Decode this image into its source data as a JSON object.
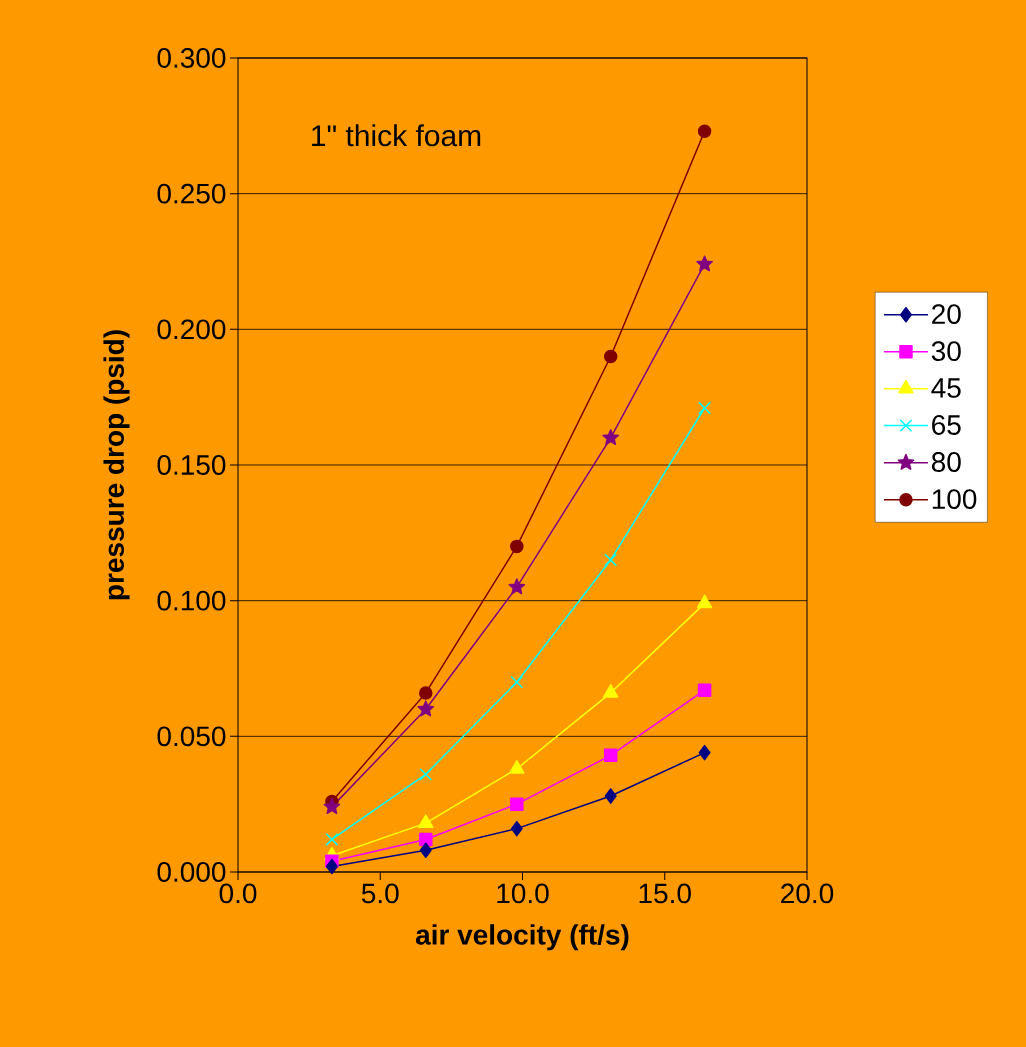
{
  "chart_data": {
    "type": "line",
    "xlabel": "air velocity (ft/s)",
    "ylabel": "pressure drop (psid)",
    "annotations": [
      "1\" thick foam"
    ],
    "x": [
      3.3,
      6.6,
      9.8,
      13.1,
      16.4
    ],
    "xlim": [
      0,
      20
    ],
    "ylim": [
      0,
      0.3
    ],
    "xticks": [
      {
        "value": 0,
        "label": "0.0"
      },
      {
        "value": 5,
        "label": "5.0"
      },
      {
        "value": 10,
        "label": "10.0"
      },
      {
        "value": 15,
        "label": "15.0"
      },
      {
        "value": 20,
        "label": "20.0"
      }
    ],
    "yticks": [
      {
        "value": 0,
        "label": "0.000"
      },
      {
        "value": 0.05,
        "label": "0.050"
      },
      {
        "value": 0.1,
        "label": "0.100"
      },
      {
        "value": 0.15,
        "label": "0.150"
      },
      {
        "value": 0.2,
        "label": "0.200"
      },
      {
        "value": 0.25,
        "label": "0.250"
      },
      {
        "value": 0.3,
        "label": "0.300"
      }
    ],
    "grid": "y",
    "legend": "right",
    "series": [
      {
        "name": "20",
        "color": "#000080",
        "marker": "diamond",
        "values": [
          0.002,
          0.008,
          0.016,
          0.028,
          0.044
        ]
      },
      {
        "name": "30",
        "color": "#ff00ff",
        "marker": "square",
        "values": [
          0.004,
          0.012,
          0.025,
          0.043,
          0.067
        ]
      },
      {
        "name": "45",
        "color": "#ffff00",
        "marker": "triangle",
        "values": [
          0.006,
          0.018,
          0.038,
          0.066,
          0.099
        ]
      },
      {
        "name": "65",
        "color": "#00ffff",
        "marker": "cross",
        "values": [
          0.012,
          0.036,
          0.07,
          0.115,
          0.171
        ]
      },
      {
        "name": "80",
        "color": "#800080",
        "marker": "star",
        "values": [
          0.024,
          0.06,
          0.105,
          0.16,
          0.224
        ]
      },
      {
        "name": "100",
        "color": "#800000",
        "marker": "circle",
        "values": [
          0.026,
          0.066,
          0.12,
          0.19,
          0.273
        ]
      }
    ]
  }
}
